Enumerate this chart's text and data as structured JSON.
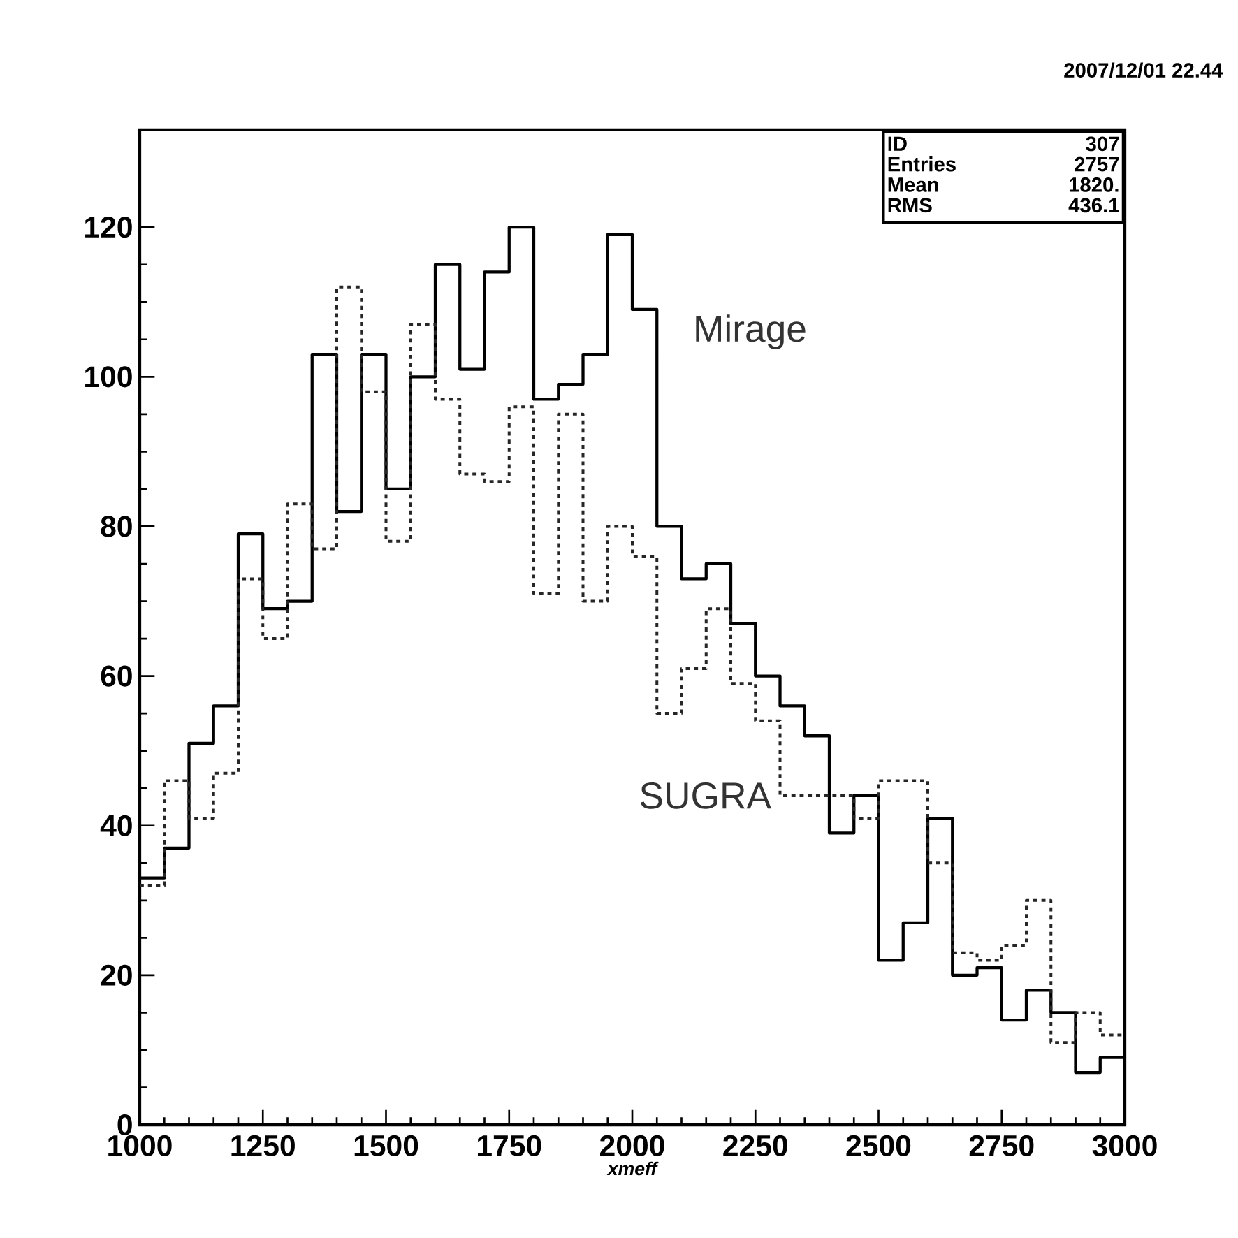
{
  "chart_data": {
    "type": "histogram",
    "xlabel": "xmeff",
    "bins": [
      1000,
      1050,
      1100,
      1150,
      1200,
      1250,
      1300,
      1350,
      1400,
      1450,
      1500,
      1550,
      1600,
      1650,
      1700,
      1750,
      1800,
      1850,
      1900,
      1950,
      2000,
      2050,
      2100,
      2150,
      2200,
      2250,
      2300,
      2350,
      2400,
      2450,
      2500,
      2550,
      2600,
      2650,
      2700,
      2750,
      2800,
      2850,
      2900,
      2950,
      3000
    ],
    "series": [
      {
        "name": "Mirage",
        "color": "#000000",
        "line_style": "solid",
        "values": [
          33,
          37,
          51,
          56,
          79,
          69,
          70,
          103,
          82,
          103,
          85,
          100,
          115,
          101,
          114,
          120,
          97,
          99,
          103,
          119,
          109,
          80,
          73,
          75,
          67,
          60,
          56,
          52,
          39,
          44,
          22,
          27,
          41,
          20,
          21,
          14,
          18,
          15,
          7,
          9
        ]
      },
      {
        "name": "SUGRA",
        "color": "#262626",
        "line_style": "dotted",
        "values": [
          32,
          46,
          41,
          47,
          73,
          65,
          83,
          77,
          112,
          98,
          78,
          107,
          97,
          87,
          86,
          96,
          71,
          95,
          70,
          80,
          76,
          55,
          61,
          69,
          59,
          54,
          44,
          44,
          44,
          41,
          46,
          46,
          35,
          23,
          22,
          24,
          30,
          11,
          15,
          12
        ]
      }
    ],
    "xlim": [
      1000,
      3000
    ],
    "ylim": [
      0,
      133
    ],
    "xticks": [
      1000,
      1250,
      1500,
      1750,
      2000,
      2250,
      2500,
      2750,
      3000
    ],
    "yticks": [
      0,
      20,
      40,
      60,
      80,
      100,
      120
    ],
    "grid": false,
    "legend": false,
    "annotations": [
      "2007/12/01  22.44",
      "ID",
      "307",
      "Entries",
      "2757",
      "Mean",
      "1820.",
      "RMS",
      "436.1"
    ]
  }
}
